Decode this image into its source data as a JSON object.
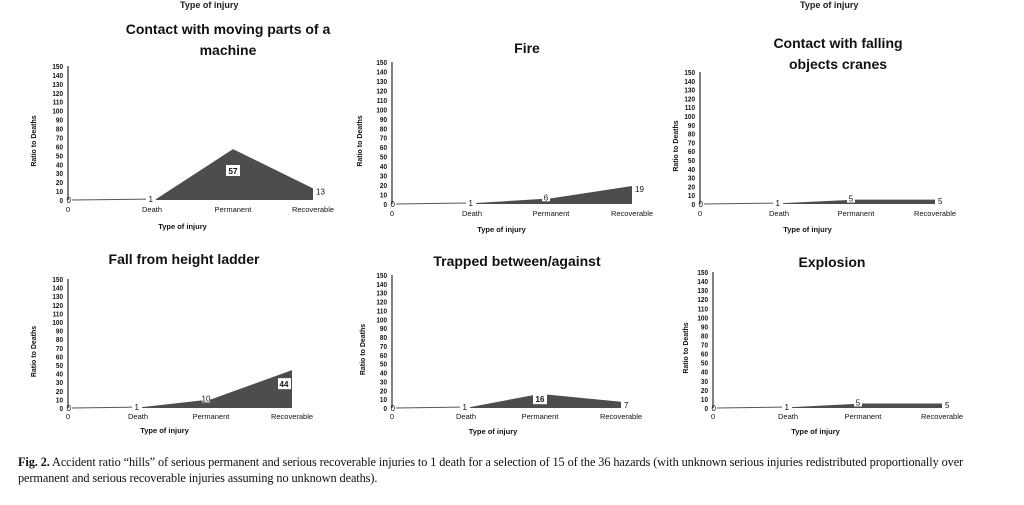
{
  "figure": {
    "cut_off_axis_labels": [
      "Type of injury",
      "Type of injury"
    ],
    "caption_label": "Fig. 2.",
    "caption_text": "Accident ratio “hills” of serious permanent and serious recoverable injuries to 1 death for a selection of 15 of the 36 hazards (with unknown serious injuries redistributed proportionally over permanent and serious recoverable injuries assuming no unknown deaths)."
  },
  "colors": {
    "fill": "#4d4d4d",
    "axis": "#555555",
    "text": "#111111"
  },
  "chart_data": [
    {
      "type": "area",
      "title": "Contact with moving parts of a machine",
      "xlabel": "Type of injury",
      "ylabel": "Ratio to Deaths",
      "categories": [
        "0",
        "Death",
        "Permanent",
        "Recoverable"
      ],
      "values": [
        0,
        1,
        57,
        13
      ],
      "ylim": [
        0,
        150
      ],
      "yticks": [
        0,
        10,
        20,
        30,
        40,
        50,
        60,
        70,
        80,
        90,
        100,
        110,
        120,
        130,
        140,
        150
      ],
      "grid": false,
      "legend": "none"
    },
    {
      "type": "area",
      "title": "Fire",
      "xlabel": "Type of injury",
      "ylabel": "Ratio to Deaths",
      "categories": [
        "0",
        "Death",
        "Permanent",
        "Recoverable"
      ],
      "values": [
        0,
        1,
        6,
        19
      ],
      "ylim": [
        0,
        150
      ],
      "yticks": [
        0,
        10,
        20,
        30,
        40,
        50,
        60,
        70,
        80,
        90,
        100,
        110,
        120,
        130,
        140,
        150
      ],
      "grid": false,
      "legend": "none"
    },
    {
      "type": "area",
      "title": "Contact with falling objects cranes",
      "xlabel": "Type of injury",
      "ylabel": "Ratio to Deaths",
      "categories": [
        "0",
        "Death",
        "Permanent",
        "Recoverable"
      ],
      "values": [
        0,
        1,
        5,
        5
      ],
      "ylim": [
        0,
        150
      ],
      "yticks": [
        0,
        10,
        20,
        30,
        40,
        50,
        60,
        70,
        80,
        90,
        100,
        110,
        120,
        130,
        140,
        150
      ],
      "grid": false,
      "legend": "none"
    },
    {
      "type": "area",
      "title": "Fall from height ladder",
      "xlabel": "Type of injury",
      "ylabel": "Ratio to Deaths",
      "categories": [
        "0",
        "Death",
        "Permanent",
        "Recoverable"
      ],
      "values": [
        0,
        1,
        10,
        44
      ],
      "ylim": [
        0,
        150
      ],
      "yticks": [
        0,
        10,
        20,
        30,
        40,
        50,
        60,
        70,
        80,
        90,
        100,
        110,
        120,
        130,
        140,
        150
      ],
      "grid": false,
      "legend": "none"
    },
    {
      "type": "area",
      "title": "Trapped between/against",
      "xlabel": "Type of injury",
      "ylabel": "Ratio to Deaths",
      "categories": [
        "0",
        "Death",
        "Permanent",
        "Recoverable"
      ],
      "values": [
        0,
        1,
        16,
        7
      ],
      "ylim": [
        0,
        150
      ],
      "yticks": [
        0,
        10,
        20,
        30,
        40,
        50,
        60,
        70,
        80,
        90,
        100,
        110,
        120,
        130,
        140,
        150
      ],
      "grid": false,
      "legend": "none"
    },
    {
      "type": "area",
      "title": "Explosion",
      "xlabel": "Type of injury",
      "ylabel": "Ratio to Deaths",
      "categories": [
        "0",
        "Death",
        "Permanent",
        "Recoverable"
      ],
      "values": [
        0,
        1,
        5,
        5
      ],
      "ylim": [
        0,
        150
      ],
      "yticks": [
        0,
        10,
        20,
        30,
        40,
        50,
        60,
        70,
        80,
        90,
        100,
        110,
        120,
        130,
        140,
        150
      ],
      "grid": false,
      "legend": "none"
    }
  ]
}
